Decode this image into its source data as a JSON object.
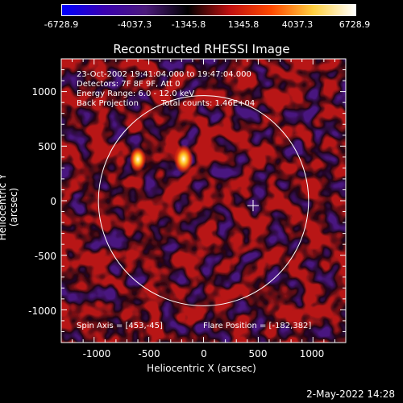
{
  "colorbar": {
    "ticks": [
      "-6728.9",
      "-4037.3",
      "-1345.8",
      "1345.8",
      "4037.3",
      "6728.9"
    ],
    "colors": [
      "#0000ff",
      "#3a00b0",
      "#4b1a7a",
      "#000000",
      "#c01010",
      "#ff4a00",
      "#ffd040",
      "#ffffff"
    ]
  },
  "title": "Reconstructed RHESSI Image",
  "annotations": {
    "line1": "23-Oct-2002 19:41:04.000 to 19:47:04.000",
    "line2": "Detectors: 7F 8F 9F, Att 0",
    "line3": "Energy Range: 6.0 - 12.0 keV",
    "line4a": "Back Projection",
    "line4b": "Total counts: 1.46E+04",
    "spin_axis": "Spin Axis = [453,-45]",
    "flare_position": "Flare Position = [-182,382]"
  },
  "axes": {
    "xlabel": "Heliocentric X (arcsec)",
    "ylabel": "Heliocentric Y (arcsec)",
    "xticks": [
      "-1000",
      "-500",
      "0",
      "500",
      "1000"
    ],
    "yticks": [
      "1000",
      "500",
      "0",
      "-500",
      "-1000"
    ],
    "xlim": [
      -1300,
      1300
    ],
    "ylim": [
      -1300,
      1300
    ]
  },
  "image": {
    "solar_limb_radius_arcsec": 960,
    "bright_sources": [
      {
        "x": -182,
        "y": 382,
        "strength": 1.0
      },
      {
        "x": -600,
        "y": 380,
        "strength": 0.85
      }
    ],
    "spin_axis_marker": {
      "x": 453,
      "y": -45
    }
  },
  "footer": {
    "date": "2-May-2022 14:28"
  }
}
